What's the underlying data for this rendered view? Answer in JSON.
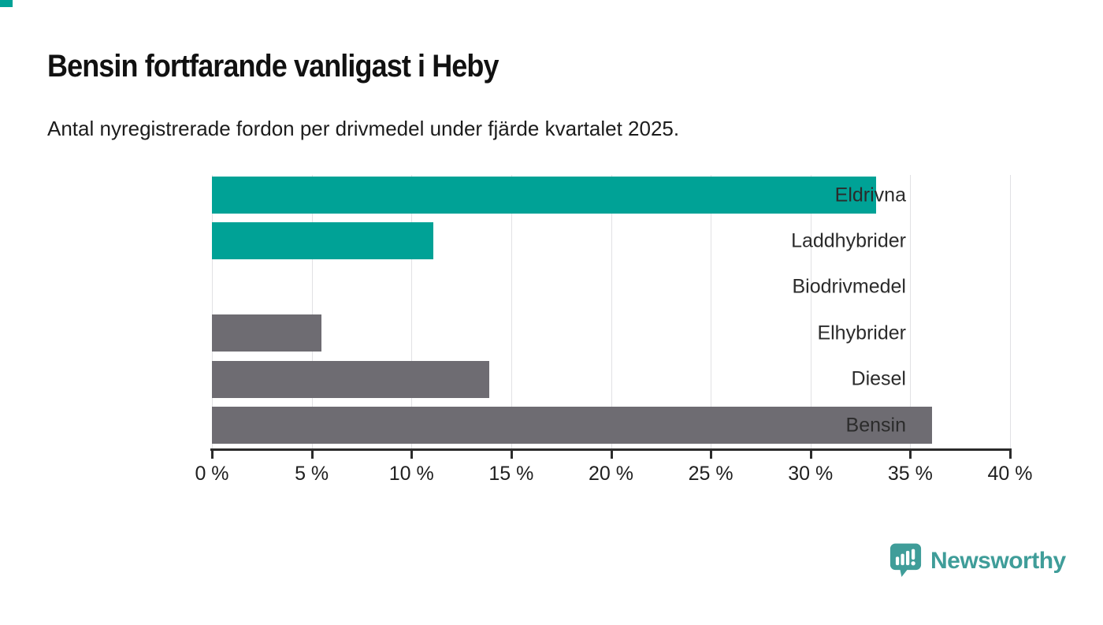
{
  "page": {
    "background": "#ffffff",
    "accent_color": "#00a296"
  },
  "header": {
    "title": "Bensin fortfarande vanligast i Heby",
    "subtitle": "Antal nyregistrerade fordon per drivmedel under fjärde kvartalet 2025."
  },
  "chart_data": {
    "type": "bar",
    "orientation": "horizontal",
    "title": "Bensin fortfarande vanligast i Heby",
    "subtitle": "Antal nyregistrerade fordon per drivmedel under fjärde kvartalet 2025.",
    "categories": [
      "Eldrivna",
      "Laddhybrider",
      "Biodrivmedel",
      "Elhybrider",
      "Diesel",
      "Bensin"
    ],
    "values": [
      33.3,
      11.1,
      0,
      5.5,
      13.9,
      36.1
    ],
    "unit": "%",
    "bar_colors": [
      "#00a296",
      "#00a296",
      "#00a296",
      "#6e6c72",
      "#6e6c72",
      "#6e6c72"
    ],
    "teal_color": "#00a296",
    "gray_color": "#6e6c72",
    "xlim": [
      0,
      40
    ],
    "x_ticks": [
      0,
      5,
      10,
      15,
      20,
      25,
      30,
      35,
      40
    ],
    "x_tick_labels": [
      "0 %",
      "5 %",
      "10 %",
      "15 %",
      "20 %",
      "25 %",
      "30 %",
      "35 %",
      "40 %"
    ],
    "grid": "vertical",
    "gridline_color": "#e1e1e4",
    "axis_color": "#2b2b2b",
    "legend": "none"
  },
  "footer": {
    "brand": "Newsworthy",
    "brand_color": "#3f9d99"
  }
}
